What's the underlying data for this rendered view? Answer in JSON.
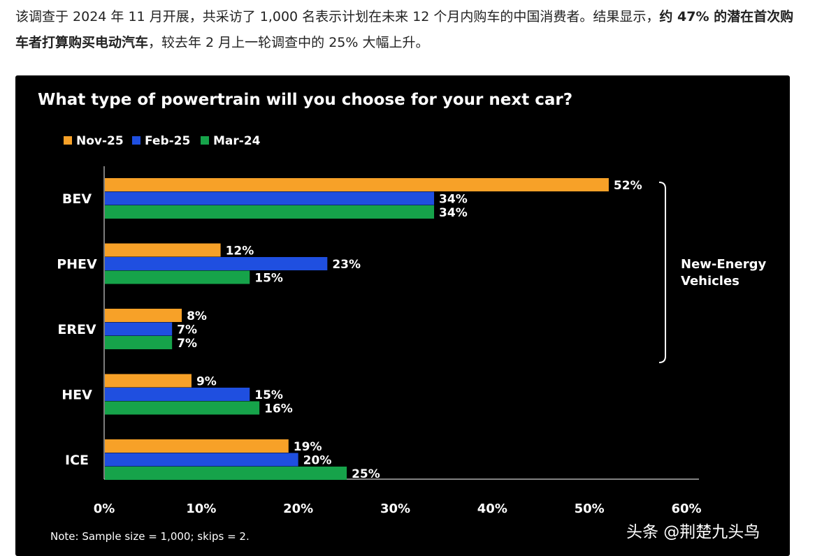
{
  "article": {
    "line1_a": "该调查于 2024 年 11 月开展，共采访了 1,000 名表示计划在未来 12 个月内购车的中国消费者。结果显示，",
    "line1_bold": "约 47% 的潜在首次购车者打算购买电动汽车",
    "line1_b": "，较去年 2 月上一轮调查中的 25% 大幅上升。"
  },
  "chart_data": {
    "type": "bar",
    "orientation": "horizontal",
    "title": "What type of powertrain will you choose for your next car?",
    "categories": [
      "BEV",
      "PHEV",
      "EREV",
      "HEV",
      "ICE"
    ],
    "series": [
      {
        "name": "Nov-25",
        "color": "#f7a128",
        "values": [
          52,
          12,
          8,
          9,
          19
        ]
      },
      {
        "name": "Feb-25",
        "color": "#1f4fe0",
        "values": [
          34,
          23,
          7,
          15,
          20
        ]
      },
      {
        "name": "Mar-24",
        "color": "#16a34a",
        "values": [
          34,
          15,
          7,
          16,
          25
        ]
      }
    ],
    "xlim": [
      0,
      60
    ],
    "xticks": [
      "0%",
      "10%",
      "20%",
      "30%",
      "40%",
      "50%",
      "60%"
    ],
    "value_suffix": "%",
    "legend_position": "top-left",
    "grid": false,
    "bracket_label": [
      "New-Energy",
      "Vehicles"
    ],
    "note": "Note: Sample size = 1,000; skips = 2."
  },
  "watermark": "头条 @荆楚九头鸟"
}
